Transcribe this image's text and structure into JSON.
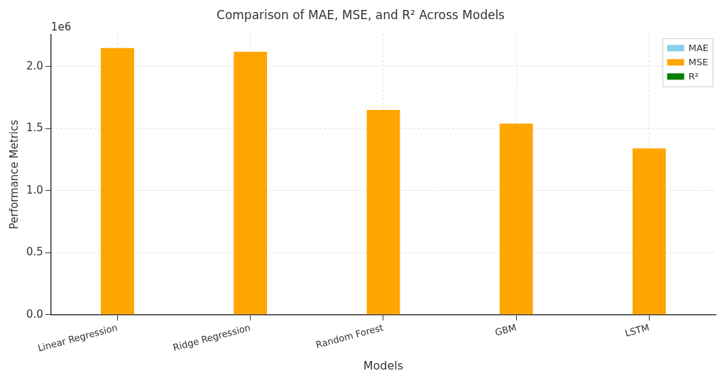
{
  "chart_data": {
    "type": "bar",
    "title": "Comparison of MAE, MSE, and R² Across Models",
    "xlabel": "Models",
    "ylabel": "Performance Metrics",
    "categories": [
      "Linear Regression",
      "Ridge Regression",
      "Random Forest",
      "GBM",
      "LSTM"
    ],
    "series": [
      {
        "name": "MAE",
        "color": "#87ceeb",
        "values": [
          0,
          0,
          0,
          0,
          0
        ]
      },
      {
        "name": "MSE",
        "color": "#ffa500",
        "values": [
          2.15,
          2.12,
          1.65,
          1.54,
          1.34
        ]
      },
      {
        "name": "R²",
        "color": "#008000",
        "values": [
          0,
          0,
          0,
          0,
          0
        ]
      }
    ],
    "ylim": [
      0,
      2.26
    ],
    "yticks": [
      {
        "value": 0,
        "label": "0.0"
      },
      {
        "value": 0.5,
        "label": "0.5"
      },
      {
        "value": 1,
        "label": "1.0"
      },
      {
        "value": 1.5,
        "label": "1.5"
      },
      {
        "value": 2,
        "label": "2.0"
      }
    ],
    "annotations": [
      "1e6"
    ],
    "grid": true,
    "legend": "top right"
  }
}
